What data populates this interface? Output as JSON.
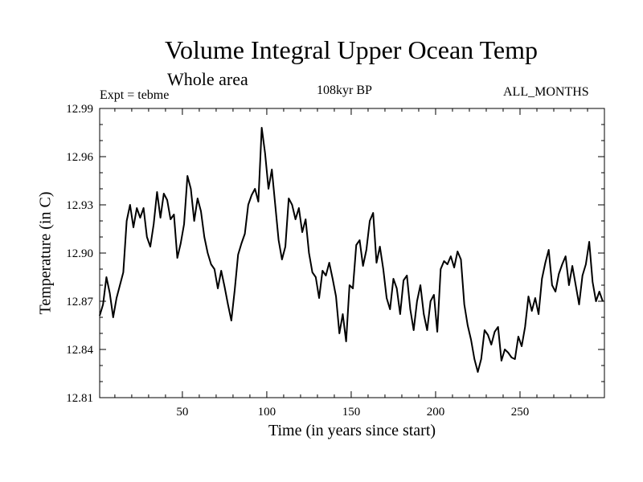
{
  "chart_data": {
    "type": "line",
    "title": "Volume Integral Upper Ocean Temp",
    "subtitle": "Whole area",
    "expt_label": "Expt = tebme",
    "period_label": "108kyr BP",
    "months_label": "ALL_MONTHS",
    "xlabel": "Time (in years since start)",
    "ylabel": "Temperature (in C)",
    "xlim": [
      1,
      300
    ],
    "ylim": [
      12.81,
      12.99
    ],
    "xticks": [
      50,
      100,
      150,
      200,
      250
    ],
    "xtick_labels": [
      "50",
      "100",
      "150",
      "200",
      "250"
    ],
    "yticks": [
      12.81,
      12.84,
      12.87,
      12.9,
      12.93,
      12.96,
      12.99
    ],
    "ytick_labels": [
      "12.81",
      "12.84",
      "12.87",
      "12.90",
      "12.93",
      "12.96",
      "12.99"
    ],
    "series": [
      {
        "name": "Temperature",
        "x": [
          1,
          3,
          5,
          7,
          9,
          11,
          13,
          15,
          17,
          19,
          21,
          23,
          25,
          27,
          29,
          31,
          33,
          35,
          37,
          39,
          41,
          43,
          45,
          47,
          49,
          51,
          53,
          55,
          57,
          59,
          61,
          63,
          65,
          67,
          69,
          71,
          73,
          75,
          77,
          79,
          81,
          83,
          85,
          87,
          89,
          91,
          93,
          95,
          97,
          99,
          101,
          103,
          105,
          107,
          109,
          111,
          113,
          115,
          117,
          119,
          121,
          123,
          125,
          127,
          129,
          131,
          133,
          135,
          137,
          139,
          141,
          143,
          145,
          147,
          149,
          151,
          153,
          155,
          157,
          159,
          161,
          163,
          165,
          167,
          169,
          171,
          173,
          175,
          177,
          179,
          181,
          183,
          185,
          187,
          189,
          191,
          193,
          195,
          197,
          199,
          201,
          203,
          205,
          207,
          209,
          211,
          213,
          215,
          217,
          219,
          221,
          223,
          225,
          227,
          229,
          231,
          233,
          235,
          237,
          239,
          241,
          243,
          245,
          247,
          249,
          251,
          253,
          255,
          257,
          259,
          261,
          263,
          265,
          267,
          269,
          271,
          273,
          275,
          277,
          279,
          281,
          283,
          285,
          287,
          289,
          291,
          293,
          295,
          297,
          299
        ],
        "values": [
          12.861,
          12.868,
          12.885,
          12.875,
          12.86,
          12.872,
          12.88,
          12.888,
          12.92,
          12.93,
          12.916,
          12.928,
          12.922,
          12.928,
          12.91,
          12.904,
          12.918,
          12.938,
          12.922,
          12.937,
          12.933,
          12.921,
          12.924,
          12.897,
          12.906,
          12.918,
          12.948,
          12.94,
          12.92,
          12.934,
          12.926,
          12.91,
          12.9,
          12.893,
          12.89,
          12.878,
          12.889,
          12.879,
          12.868,
          12.858,
          12.877,
          12.899,
          12.906,
          12.912,
          12.93,
          12.936,
          12.94,
          12.932,
          12.978,
          12.962,
          12.94,
          12.952,
          12.93,
          12.908,
          12.896,
          12.904,
          12.934,
          12.93,
          12.921,
          12.928,
          12.913,
          12.921,
          12.9,
          12.888,
          12.885,
          12.872,
          12.889,
          12.886,
          12.894,
          12.884,
          12.873,
          12.85,
          12.862,
          12.845,
          12.88,
          12.878,
          12.905,
          12.908,
          12.892,
          12.902,
          12.92,
          12.925,
          12.894,
          12.904,
          12.89,
          12.872,
          12.865,
          12.884,
          12.878,
          12.862,
          12.883,
          12.886,
          12.865,
          12.852,
          12.87,
          12.88,
          12.862,
          12.852,
          12.87,
          12.874,
          12.851,
          12.89,
          12.895,
          12.893,
          12.898,
          12.891,
          12.901,
          12.896,
          12.868,
          12.855,
          12.846,
          12.834,
          12.826,
          12.834,
          12.852,
          12.849,
          12.843,
          12.851,
          12.854,
          12.833,
          12.84,
          12.838,
          12.835,
          12.834,
          12.848,
          12.842,
          12.854,
          12.873,
          12.864,
          12.872,
          12.862,
          12.884,
          12.894,
          12.902,
          12.88,
          12.876,
          12.887,
          12.893,
          12.898,
          12.88,
          12.892,
          12.88,
          12.868,
          12.886,
          12.893,
          12.907,
          12.882,
          12.87,
          12.876,
          12.87
        ]
      }
    ]
  }
}
